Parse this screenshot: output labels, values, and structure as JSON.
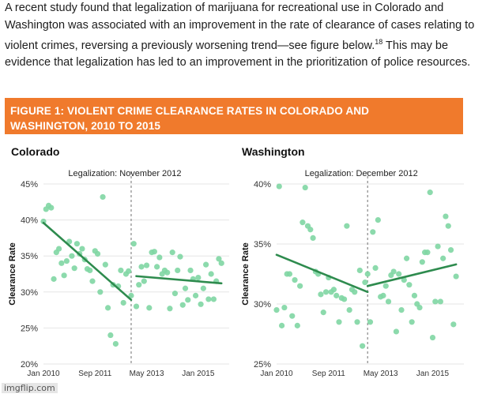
{
  "intro": {
    "text_before": "A recent study found that legalization of marijuana for recreational use in Colorado and Washington was associated with an improvement in the rate of clearance of cases relating to violent crimes, reversing a previously worsening trend—see figure below.",
    "footnote": "18",
    "text_after": " This may be evidence that legalization has led to an improvement in the prioritization of police resources."
  },
  "figure_title": "FIGURE 1: VIOLENT CRIME CLEARANCE RATES IN COLORADO AND WASHINGTON, 2010 TO 2015",
  "watermark": "imgflip.com",
  "colors": {
    "banner": "#f07a2c",
    "points": "#7fd6a3",
    "trend": "#2e8b4e",
    "divider": "#888888"
  },
  "chart_data": [
    {
      "type": "scatter",
      "title": "Colorado",
      "annotation": "Legalization: November 2012",
      "ylabel": "Clearance Rate",
      "xlim": [
        0,
        72
      ],
      "ylim": [
        20,
        45
      ],
      "yticks": [
        20,
        25,
        30,
        35,
        40,
        45
      ],
      "ytick_labels": [
        "20%",
        "25%",
        "30%",
        "35%",
        "40%",
        "45%"
      ],
      "xticks": [
        0,
        20,
        40,
        60
      ],
      "xtick_labels": [
        "Jan 2010",
        "Sep 2011",
        "May 2013",
        "Jan 2015"
      ],
      "legalization_x": 34,
      "points": [
        [
          0,
          39.8
        ],
        [
          1,
          41.5
        ],
        [
          2,
          42
        ],
        [
          3,
          41.7
        ],
        [
          4,
          31.8
        ],
        [
          5,
          35.5
        ],
        [
          6,
          36
        ],
        [
          7,
          34
        ],
        [
          8,
          32.3
        ],
        [
          9,
          34.3
        ],
        [
          10,
          37
        ],
        [
          11,
          35
        ],
        [
          12,
          33.3
        ],
        [
          13,
          36.7
        ],
        [
          14,
          35.3
        ],
        [
          15,
          36
        ],
        [
          16,
          34.5
        ],
        [
          17,
          33.2
        ],
        [
          18,
          33
        ],
        [
          19,
          31.5
        ],
        [
          20,
          35.7
        ],
        [
          21,
          35.3
        ],
        [
          22,
          30
        ],
        [
          23,
          43.2
        ],
        [
          24,
          33.8
        ],
        [
          25,
          27.8
        ],
        [
          26,
          24
        ],
        [
          27,
          31
        ],
        [
          28,
          22.8
        ],
        [
          29,
          30.8
        ],
        [
          30,
          33
        ],
        [
          31,
          28.5
        ],
        [
          32,
          32.5
        ],
        [
          33,
          32.9
        ],
        [
          34,
          29.5
        ],
        [
          35,
          36.7
        ],
        [
          36,
          28
        ],
        [
          37,
          31
        ],
        [
          38,
          33.5
        ],
        [
          39,
          31.5
        ],
        [
          40,
          33.7
        ],
        [
          41,
          27.8
        ],
        [
          42,
          35.5
        ],
        [
          43,
          35.6
        ],
        [
          44,
          33.5
        ],
        [
          45,
          34.8
        ],
        [
          46,
          32.5
        ],
        [
          47,
          33
        ],
        [
          48,
          32.7
        ],
        [
          49,
          27.7
        ],
        [
          50,
          35.5
        ],
        [
          51,
          29.8
        ],
        [
          52,
          33
        ],
        [
          53,
          34.9
        ],
        [
          54,
          28.2
        ],
        [
          55,
          30.5
        ],
        [
          56,
          28.9
        ],
        [
          57,
          33
        ],
        [
          58,
          31.8
        ],
        [
          59,
          29.5
        ],
        [
          60,
          32
        ],
        [
          61,
          28.3
        ],
        [
          62,
          30.5
        ],
        [
          63,
          33.8
        ],
        [
          64,
          29
        ],
        [
          65,
          32.5
        ],
        [
          66,
          29
        ],
        [
          67,
          31.5
        ],
        [
          68,
          34.6
        ],
        [
          69,
          34
        ]
      ],
      "trend_lines": [
        {
          "x": [
            0,
            34
          ],
          "y": [
            39.6,
            28.9
          ]
        },
        {
          "x": [
            36,
            69
          ],
          "y": [
            32.2,
            31.2
          ]
        }
      ]
    },
    {
      "type": "scatter",
      "title": "Washington",
      "annotation": "Legalization: December 2012",
      "ylabel": "Clearance Rate",
      "xlim": [
        0,
        72
      ],
      "ylim": [
        25,
        40
      ],
      "yticks": [
        25,
        30,
        35,
        40
      ],
      "ytick_labels": [
        "25%",
        "30%",
        "35%",
        "40%"
      ],
      "xticks": [
        0,
        20,
        40,
        60
      ],
      "xtick_labels": [
        "Jan 2010",
        "Sep 2011",
        "May 2013",
        "Jan 2015"
      ],
      "legalization_x": 35,
      "points": [
        [
          0,
          29.5
        ],
        [
          1,
          39.8
        ],
        [
          2,
          28.2
        ],
        [
          3,
          29.7
        ],
        [
          4,
          32.5
        ],
        [
          5,
          32.5
        ],
        [
          6,
          29
        ],
        [
          7,
          32
        ],
        [
          8,
          28.2
        ],
        [
          9,
          31.5
        ],
        [
          10,
          36.8
        ],
        [
          11,
          39.7
        ],
        [
          12,
          36.5
        ],
        [
          13,
          36.2
        ],
        [
          14,
          35.5
        ],
        [
          15,
          32.7
        ],
        [
          16,
          32.5
        ],
        [
          17,
          30.8
        ],
        [
          18,
          29.3
        ],
        [
          19,
          31
        ],
        [
          20,
          32.2
        ],
        [
          21,
          31
        ],
        [
          22,
          31.2
        ],
        [
          23,
          30.7
        ],
        [
          24,
          28.5
        ],
        [
          25,
          30.5
        ],
        [
          26,
          30.4
        ],
        [
          27,
          36.5
        ],
        [
          28,
          29.5
        ],
        [
          29,
          31.2
        ],
        [
          30,
          31
        ],
        [
          31,
          28.5
        ],
        [
          32,
          32.8
        ],
        [
          33,
          26.5
        ],
        [
          34,
          31.8
        ],
        [
          35,
          32.5
        ],
        [
          36,
          28.5
        ],
        [
          37,
          36
        ],
        [
          38,
          33
        ],
        [
          39,
          37
        ],
        [
          40,
          30.6
        ],
        [
          41,
          30.7
        ],
        [
          42,
          31.5
        ],
        [
          43,
          30.2
        ],
        [
          44,
          32.4
        ],
        [
          45,
          32.7
        ],
        [
          46,
          27.7
        ],
        [
          47,
          32.5
        ],
        [
          48,
          29.5
        ],
        [
          49,
          32
        ],
        [
          50,
          33.8
        ],
        [
          51,
          31.6
        ],
        [
          52,
          28.5
        ],
        [
          53,
          30.7
        ],
        [
          54,
          30
        ],
        [
          55,
          29.7
        ],
        [
          56,
          33.5
        ],
        [
          57,
          34.3
        ],
        [
          58,
          34.3
        ],
        [
          59,
          39.3
        ],
        [
          60,
          27.2
        ],
        [
          61,
          30.2
        ],
        [
          62,
          34.8
        ],
        [
          63,
          30.2
        ],
        [
          64,
          33.8
        ],
        [
          65,
          37.3
        ],
        [
          66,
          36.5
        ],
        [
          67,
          34.5
        ],
        [
          68,
          28.3
        ],
        [
          69,
          32.3
        ]
      ],
      "trend_lines": [
        {
          "x": [
            0,
            35
          ],
          "y": [
            34.1,
            31
          ]
        },
        {
          "x": [
            35,
            69
          ],
          "y": [
            31.5,
            33.3
          ]
        }
      ]
    }
  ]
}
